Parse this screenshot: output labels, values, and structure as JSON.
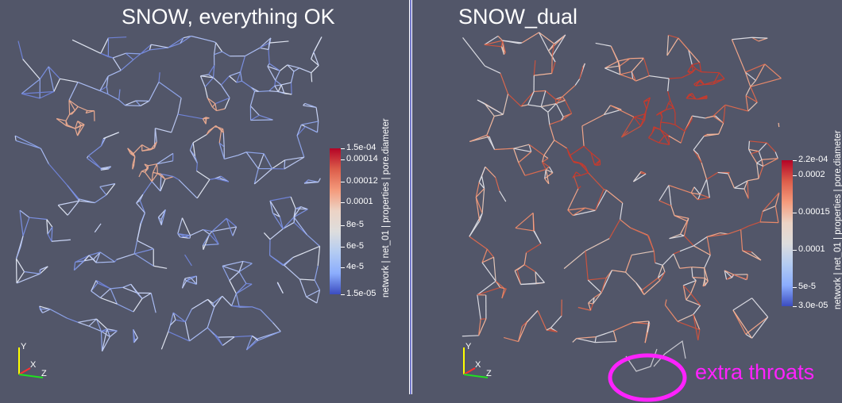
{
  "views": {
    "left": {
      "title": "SNOW, everything OK",
      "colorbar": {
        "title": "network | net_01 | properties | pore.diameter",
        "ticks": [
          "1.5e-04",
          "0.00014",
          "0.00012",
          "0.0001",
          "8e-5",
          "6e-5",
          "4e-5",
          "1.5e-05"
        ],
        "colors": [
          "#b40426",
          "#dc5d4a",
          "#f49a7b",
          "#ecd3c5",
          "#dddddd",
          "#b3cbf2",
          "#8badfd",
          "#3b4cc0"
        ]
      },
      "axes": {
        "y": "Y",
        "x": "X",
        "z": "Z"
      }
    },
    "right": {
      "title": "SNOW_dual",
      "colorbar": {
        "title": "network | net_01 | properties | pore.diameter",
        "ticks": [
          "2.2e-04",
          "0.0002",
          "0.00015",
          "0.0001",
          "5e-5",
          "3.0e-05"
        ],
        "colors": [
          "#b40426",
          "#dc5d4a",
          "#f49a7b",
          "#ecd3c5",
          "#dddddd",
          "#b3cbf2",
          "#8badfd",
          "#3b4cc0"
        ]
      },
      "axes": {
        "y": "Y",
        "x": "X",
        "z": "Z"
      }
    }
  },
  "annotation": {
    "text": "extra throats",
    "color": "#ff22ff"
  }
}
